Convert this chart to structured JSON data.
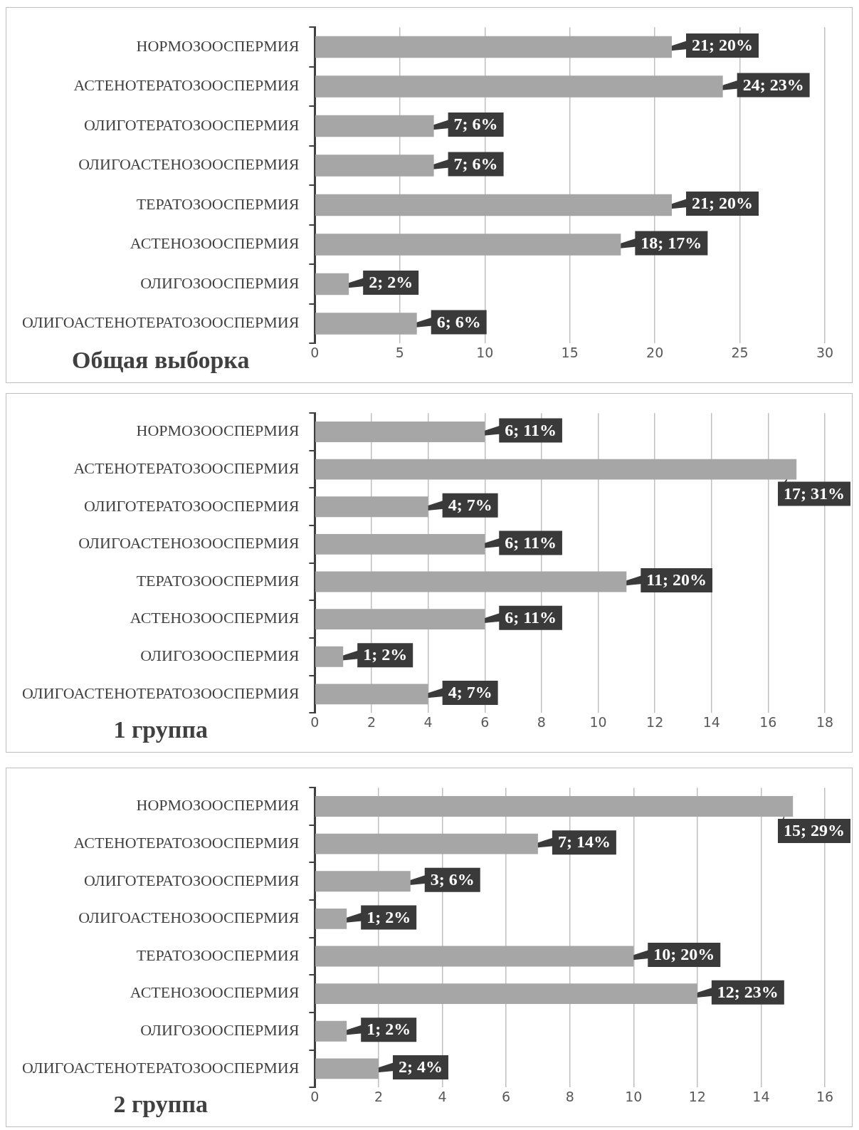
{
  "chart_data": [
    {
      "type": "bar",
      "orientation": "horizontal",
      "title": "Общая выборка",
      "categories": [
        "НОРМОЗООСПЕРМИЯ",
        "АСТЕНОТЕРАТОЗООСПЕРМИЯ",
        "ОЛИГОТЕРАТОЗООСПЕРМИЯ",
        "ОЛИГОАСТЕНОЗООСПЕРМИЯ",
        "ТЕРАТОЗООСПЕРМИЯ",
        "АСТЕНОЗООСПЕРМИЯ",
        "ОЛИГОЗООСПЕРМИЯ",
        "ОЛИГОАСТЕНОТЕРАТОЗООСПЕРМИЯ"
      ],
      "values": [
        21,
        24,
        7,
        7,
        21,
        18,
        2,
        6
      ],
      "value_labels": [
        "21; 20%",
        "24; 23%",
        "7; 6%",
        "7; 6%",
        "21; 20%",
        "18; 17%",
        "2; 2%",
        "6; 6%"
      ],
      "color": "#a6a6a6",
      "xlim": [
        0,
        30
      ],
      "xticks": [
        0,
        5,
        10,
        15,
        20,
        25,
        30
      ],
      "grid": "x"
    },
    {
      "type": "bar",
      "orientation": "horizontal",
      "title": "1 группа",
      "categories": [
        "НОРМОЗООСПЕРМИЯ",
        "АСТЕНОТЕРАТОЗООСПЕРМИЯ",
        "ОЛИГОТЕРАТОЗООСПЕРМИЯ",
        "ОЛИГОАСТЕНОЗООСПЕРМИЯ",
        "ТЕРАТОЗООСПЕРМИЯ",
        "АСТЕНОЗООСПЕРМИЯ",
        "ОЛИГОЗООСПЕРМИЯ",
        "ОЛИГОАСТЕНОТЕРАТОЗООСПЕРМИЯ"
      ],
      "values": [
        6,
        17,
        4,
        6,
        11,
        6,
        1,
        4
      ],
      "value_labels": [
        "6; 11%",
        "17; 31%",
        "4; 7%",
        "6; 11%",
        "11; 20%",
        "6; 11%",
        "1; 2%",
        "4; 7%"
      ],
      "color": "#a6a6a6",
      "xlim": [
        0,
        18
      ],
      "xticks": [
        0,
        2,
        4,
        6,
        8,
        10,
        12,
        14,
        16,
        18
      ],
      "grid": "x"
    },
    {
      "type": "bar",
      "orientation": "horizontal",
      "title": "2 группа",
      "categories": [
        "НОРМОЗООСПЕРМИЯ",
        "АСТЕНОТЕРАТОЗООСПЕРМИЯ",
        "ОЛИГОТЕРАТОЗООСПЕРМИЯ",
        "ОЛИГОАСТЕНОЗООСПЕРМИЯ",
        "ТЕРАТОЗООСПЕРМИЯ",
        "АСТЕНОЗООСПЕРМИЯ",
        "ОЛИГОЗООСПЕРМИЯ",
        "ОЛИГОАСТЕНОТЕРАТОЗООСПЕРМИЯ"
      ],
      "values": [
        15,
        7,
        3,
        1,
        10,
        12,
        1,
        2
      ],
      "value_labels": [
        "15; 29%",
        "7; 14%",
        "3; 6%",
        "1; 2%",
        "10; 20%",
        "12; 23%",
        "1; 2%",
        "2; 4%"
      ],
      "color": "#a6a6a6",
      "xlim": [
        0,
        16
      ],
      "xticks": [
        0,
        2,
        4,
        6,
        8,
        10,
        12,
        14,
        16
      ],
      "grid": "x"
    }
  ]
}
